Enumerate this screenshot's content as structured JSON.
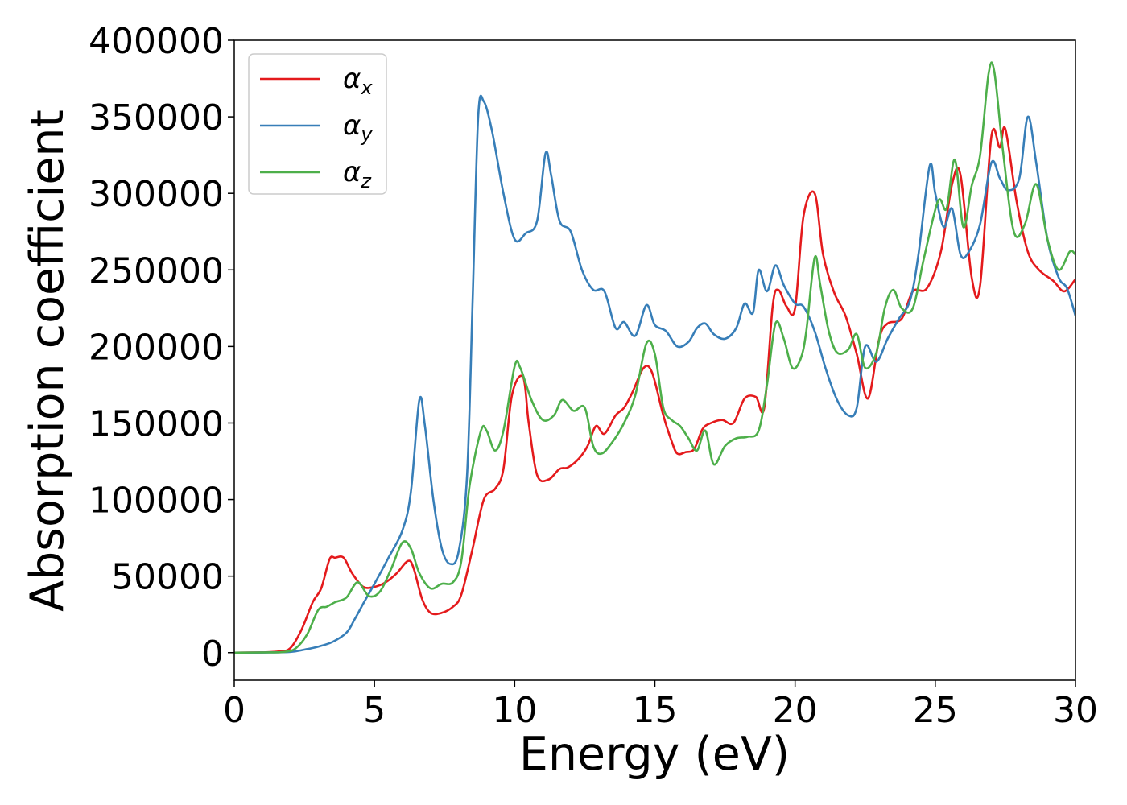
{
  "chart_data": {
    "type": "line",
    "title": "",
    "xlabel": "Energy (eV)",
    "ylabel": "Absorption coefficient",
    "xlim": [
      0,
      30
    ],
    "ylim": [
      -18000,
      400000
    ],
    "xticks": [
      0,
      5,
      10,
      15,
      20,
      25,
      30
    ],
    "xtick_labels": [
      "0",
      "5",
      "10",
      "15",
      "20",
      "25",
      "30"
    ],
    "yticks": [
      0,
      50000,
      100000,
      150000,
      200000,
      250000,
      300000,
      350000,
      400000
    ],
    "ytick_labels": [
      "0",
      "50000",
      "100000",
      "150000",
      "200000",
      "250000",
      "300000",
      "350000",
      "400000"
    ],
    "grid": false,
    "legend_position": "top-left",
    "series": [
      {
        "name": "αx",
        "symbol": "α",
        "subscript": "x",
        "color": "#e41a1c",
        "points": [
          [
            0,
            0
          ],
          [
            1,
            200
          ],
          [
            1.6,
            800
          ],
          [
            2,
            3000
          ],
          [
            2.4,
            15000
          ],
          [
            2.8,
            33000
          ],
          [
            3.1,
            42000
          ],
          [
            3.4,
            61000
          ],
          [
            3.6,
            62000
          ],
          [
            3.9,
            62000
          ],
          [
            4.2,
            52000
          ],
          [
            4.6,
            43000
          ],
          [
            5.0,
            43000
          ],
          [
            5.4,
            46000
          ],
          [
            5.8,
            52000
          ],
          [
            6.2,
            60000
          ],
          [
            6.4,
            55000
          ],
          [
            6.7,
            35000
          ],
          [
            7.0,
            26000
          ],
          [
            7.4,
            26000
          ],
          [
            7.8,
            30000
          ],
          [
            8.1,
            38000
          ],
          [
            8.5,
            68000
          ],
          [
            8.9,
            100000
          ],
          [
            9.3,
            107000
          ],
          [
            9.6,
            120000
          ],
          [
            9.9,
            168000
          ],
          [
            10.3,
            180000
          ],
          [
            10.5,
            150000
          ],
          [
            10.8,
            116000
          ],
          [
            11.2,
            113000
          ],
          [
            11.6,
            120000
          ],
          [
            11.9,
            121000
          ],
          [
            12.3,
            127000
          ],
          [
            12.6,
            135000
          ],
          [
            12.9,
            148000
          ],
          [
            13.2,
            143000
          ],
          [
            13.6,
            155000
          ],
          [
            13.9,
            160000
          ],
          [
            14.2,
            170000
          ],
          [
            14.6,
            186000
          ],
          [
            14.9,
            183000
          ],
          [
            15.3,
            155000
          ],
          [
            15.6,
            138000
          ],
          [
            15.8,
            130000
          ],
          [
            16.1,
            131000
          ],
          [
            16.4,
            133000
          ],
          [
            16.7,
            146000
          ],
          [
            17.0,
            150000
          ],
          [
            17.4,
            152000
          ],
          [
            17.8,
            150000
          ],
          [
            18.2,
            166000
          ],
          [
            18.6,
            167000
          ],
          [
            18.9,
            160000
          ],
          [
            19.2,
            226000
          ],
          [
            19.4,
            237000
          ],
          [
            19.7,
            226000
          ],
          [
            20.0,
            225000
          ],
          [
            20.3,
            285000
          ],
          [
            20.7,
            300000
          ],
          [
            21.0,
            260000
          ],
          [
            21.4,
            235000
          ],
          [
            21.8,
            220000
          ],
          [
            22.2,
            195000
          ],
          [
            22.6,
            166000
          ],
          [
            23.0,
            205000
          ],
          [
            23.3,
            215000
          ],
          [
            23.8,
            218000
          ],
          [
            24.2,
            236000
          ],
          [
            24.7,
            238000
          ],
          [
            25.2,
            262000
          ],
          [
            25.6,
            306000
          ],
          [
            25.9,
            312000
          ],
          [
            26.3,
            245000
          ],
          [
            26.6,
            240000
          ],
          [
            27.0,
            337000
          ],
          [
            27.3,
            330000
          ],
          [
            27.5,
            342000
          ],
          [
            27.9,
            295000
          ],
          [
            28.3,
            262000
          ],
          [
            28.7,
            250000
          ],
          [
            29.2,
            243000
          ],
          [
            29.6,
            236000
          ],
          [
            30.0,
            244000
          ]
        ]
      },
      {
        "name": "αy",
        "symbol": "α",
        "subscript": "y",
        "color": "#377eb8",
        "points": [
          [
            0,
            0
          ],
          [
            1,
            100
          ],
          [
            2,
            500
          ],
          [
            2.5,
            2000
          ],
          [
            3.0,
            4000
          ],
          [
            3.5,
            7000
          ],
          [
            4.0,
            13000
          ],
          [
            4.3,
            22000
          ],
          [
            4.6,
            32000
          ],
          [
            5.0,
            45000
          ],
          [
            5.5,
            62000
          ],
          [
            6.0,
            80000
          ],
          [
            6.3,
            105000
          ],
          [
            6.6,
            165000
          ],
          [
            6.8,
            148000
          ],
          [
            7.1,
            100000
          ],
          [
            7.4,
            68000
          ],
          [
            7.7,
            58000
          ],
          [
            8.0,
            66000
          ],
          [
            8.3,
            115000
          ],
          [
            8.5,
            230000
          ],
          [
            8.7,
            350000
          ],
          [
            8.9,
            360000
          ],
          [
            9.2,
            340000
          ],
          [
            9.6,
            300000
          ],
          [
            10.0,
            270000
          ],
          [
            10.4,
            274000
          ],
          [
            10.8,
            282000
          ],
          [
            11.1,
            326000
          ],
          [
            11.3,
            312000
          ],
          [
            11.6,
            282000
          ],
          [
            12.0,
            275000
          ],
          [
            12.4,
            250000
          ],
          [
            12.8,
            237000
          ],
          [
            13.2,
            236000
          ],
          [
            13.6,
            212000
          ],
          [
            13.9,
            216000
          ],
          [
            14.3,
            207000
          ],
          [
            14.7,
            227000
          ],
          [
            15.0,
            214000
          ],
          [
            15.4,
            210000
          ],
          [
            15.8,
            200000
          ],
          [
            16.2,
            203000
          ],
          [
            16.5,
            212000
          ],
          [
            16.8,
            215000
          ],
          [
            17.1,
            208000
          ],
          [
            17.5,
            205000
          ],
          [
            17.9,
            212000
          ],
          [
            18.2,
            228000
          ],
          [
            18.5,
            222000
          ],
          [
            18.7,
            250000
          ],
          [
            19.0,
            236000
          ],
          [
            19.3,
            253000
          ],
          [
            19.6,
            240000
          ],
          [
            20.0,
            228000
          ],
          [
            20.3,
            226000
          ],
          [
            20.7,
            210000
          ],
          [
            21.1,
            185000
          ],
          [
            21.5,
            165000
          ],
          [
            21.9,
            155000
          ],
          [
            22.2,
            160000
          ],
          [
            22.5,
            200000
          ],
          [
            22.9,
            190000
          ],
          [
            23.3,
            205000
          ],
          [
            23.7,
            218000
          ],
          [
            24.1,
            230000
          ],
          [
            24.4,
            260000
          ],
          [
            24.8,
            318000
          ],
          [
            25.0,
            300000
          ],
          [
            25.3,
            278000
          ],
          [
            25.6,
            290000
          ],
          [
            25.9,
            260000
          ],
          [
            26.2,
            262000
          ],
          [
            26.6,
            280000
          ],
          [
            27.0,
            320000
          ],
          [
            27.3,
            310000
          ],
          [
            27.6,
            302000
          ],
          [
            28.0,
            310000
          ],
          [
            28.3,
            350000
          ],
          [
            28.6,
            320000
          ],
          [
            29.0,
            270000
          ],
          [
            29.4,
            245000
          ],
          [
            29.7,
            238000
          ],
          [
            30.0,
            220000
          ]
        ]
      },
      {
        "name": "αz",
        "symbol": "α",
        "subscript": "z",
        "color": "#4daf4a",
        "points": [
          [
            0,
            0
          ],
          [
            1,
            150
          ],
          [
            1.8,
            500
          ],
          [
            2.2,
            3000
          ],
          [
            2.6,
            12000
          ],
          [
            3.0,
            28000
          ],
          [
            3.3,
            30000
          ],
          [
            3.6,
            33000
          ],
          [
            4.0,
            36000
          ],
          [
            4.4,
            46000
          ],
          [
            4.8,
            37000
          ],
          [
            5.2,
            40000
          ],
          [
            5.6,
            55000
          ],
          [
            6.0,
            72000
          ],
          [
            6.3,
            68000
          ],
          [
            6.6,
            52000
          ],
          [
            7.0,
            42000
          ],
          [
            7.4,
            45000
          ],
          [
            7.8,
            46000
          ],
          [
            8.1,
            60000
          ],
          [
            8.4,
            110000
          ],
          [
            8.8,
            145000
          ],
          [
            9.0,
            145000
          ],
          [
            9.3,
            132000
          ],
          [
            9.6,
            145000
          ],
          [
            10.0,
            187000
          ],
          [
            10.2,
            186000
          ],
          [
            10.6,
            165000
          ],
          [
            11.0,
            152000
          ],
          [
            11.4,
            155000
          ],
          [
            11.7,
            165000
          ],
          [
            12.1,
            158000
          ],
          [
            12.5,
            160000
          ],
          [
            12.8,
            135000
          ],
          [
            13.1,
            130000
          ],
          [
            13.5,
            138000
          ],
          [
            13.9,
            150000
          ],
          [
            14.3,
            168000
          ],
          [
            14.7,
            202000
          ],
          [
            15.0,
            195000
          ],
          [
            15.3,
            160000
          ],
          [
            15.6,
            152000
          ],
          [
            15.9,
            148000
          ],
          [
            16.2,
            140000
          ],
          [
            16.5,
            132000
          ],
          [
            16.8,
            145000
          ],
          [
            17.1,
            123000
          ],
          [
            17.5,
            135000
          ],
          [
            17.9,
            140000
          ],
          [
            18.3,
            141000
          ],
          [
            18.7,
            145000
          ],
          [
            19.0,
            175000
          ],
          [
            19.3,
            215000
          ],
          [
            19.6,
            205000
          ],
          [
            19.9,
            186000
          ],
          [
            20.2,
            192000
          ],
          [
            20.4,
            210000
          ],
          [
            20.7,
            258000
          ],
          [
            20.9,
            240000
          ],
          [
            21.2,
            210000
          ],
          [
            21.5,
            196000
          ],
          [
            21.9,
            198000
          ],
          [
            22.2,
            208000
          ],
          [
            22.5,
            186000
          ],
          [
            22.9,
            196000
          ],
          [
            23.2,
            225000
          ],
          [
            23.5,
            237000
          ],
          [
            23.8,
            225000
          ],
          [
            24.2,
            225000
          ],
          [
            24.6,
            258000
          ],
          [
            25.1,
            295000
          ],
          [
            25.4,
            290000
          ],
          [
            25.7,
            322000
          ],
          [
            26.0,
            278000
          ],
          [
            26.3,
            305000
          ],
          [
            26.6,
            325000
          ],
          [
            26.9,
            378000
          ],
          [
            27.1,
            380000
          ],
          [
            27.4,
            330000
          ],
          [
            27.8,
            275000
          ],
          [
            28.2,
            280000
          ],
          [
            28.6,
            306000
          ],
          [
            29.0,
            270000
          ],
          [
            29.4,
            250000
          ],
          [
            29.8,
            262000
          ],
          [
            30.0,
            260000
          ]
        ]
      }
    ]
  }
}
